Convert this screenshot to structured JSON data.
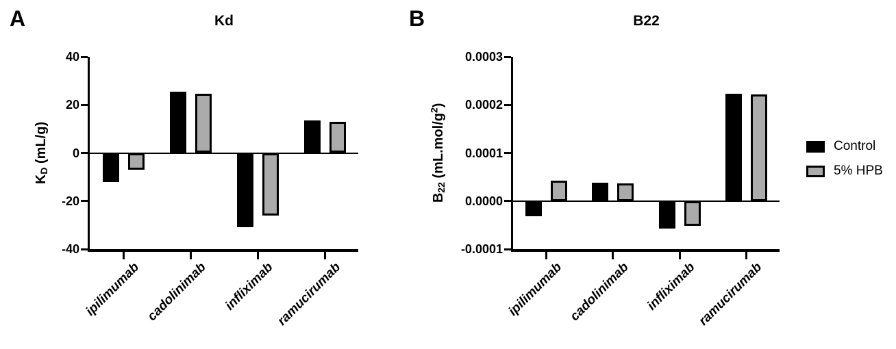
{
  "figure": {
    "panels": [
      {
        "letter": "A",
        "title": "Kd"
      },
      {
        "letter": "B",
        "title": "B22"
      }
    ]
  },
  "legend": {
    "position": "right-of-figure",
    "items": [
      {
        "label": "Control",
        "color": "#000000",
        "swatch": "black-filled-square"
      },
      {
        "label": "5% HPB",
        "color": "#ABABAB",
        "swatch": "gray-filled-square-black-border"
      }
    ]
  },
  "chart_data": [
    {
      "type": "bar",
      "panel": "A",
      "title": "Kd",
      "categories": [
        "ipilimumab",
        "cadolinimab",
        "infliximab",
        "ramucirumab"
      ],
      "series": [
        {
          "name": "Control",
          "color": "#000000",
          "values": [
            -12,
            25.5,
            -31,
            13.5
          ]
        },
        {
          "name": "5% HPB",
          "color": "#ABABAB",
          "values": [
            -7,
            24.5,
            -26,
            13
          ]
        }
      ],
      "ylabel_text": "K_D (mL/g)",
      "ylabel": [
        {
          "t": "K"
        },
        {
          "t": "D",
          "style": "sub"
        },
        {
          "t": " (mL/g)"
        }
      ],
      "xlabel": "",
      "ylim": [
        -40,
        40
      ],
      "yticks": [
        {
          "v": 40,
          "label": "40"
        },
        {
          "v": 20,
          "label": "20"
        },
        {
          "v": 0,
          "label": "0"
        },
        {
          "v": -20,
          "label": "-20"
        },
        {
          "v": -40,
          "label": "-40"
        }
      ],
      "grid": false,
      "x_tick_label_rotation_deg": 45,
      "x_tick_label_style": "bold-italic"
    },
    {
      "type": "bar",
      "panel": "B",
      "title": "B22",
      "categories": [
        "ipilimumab",
        "cadolinimab",
        "infliximab",
        "ramucirumab"
      ],
      "series": [
        {
          "name": "Control",
          "color": "#000000",
          "values": [
            -3.2e-05,
            3.8e-05,
            -5.8e-05,
            0.000223
          ]
        },
        {
          "name": "5% HPB",
          "color": "#ABABAB",
          "values": [
            4.2e-05,
            3.7e-05,
            -5.1e-05,
            0.000221
          ]
        }
      ],
      "ylabel_text": "B_22 (mL.mol/g^2)",
      "ylabel": [
        {
          "t": "B"
        },
        {
          "t": "22",
          "style": "sub"
        },
        {
          "t": " (mL.mol/g"
        },
        {
          "t": "2",
          "style": "sup"
        },
        {
          "t": ")"
        }
      ],
      "xlabel": "",
      "ylim": [
        -0.0001,
        0.0003
      ],
      "yticks": [
        {
          "v": 0.0003,
          "label": "0.0003"
        },
        {
          "v": 0.0002,
          "label": "0.0002"
        },
        {
          "v": 0.0001,
          "label": "0.0001"
        },
        {
          "v": 0,
          "label": "0.0000"
        },
        {
          "v": -0.0001,
          "label": "-0.0001"
        }
      ],
      "grid": false,
      "x_tick_label_rotation_deg": 45,
      "x_tick_label_style": "bold-italic"
    }
  ]
}
